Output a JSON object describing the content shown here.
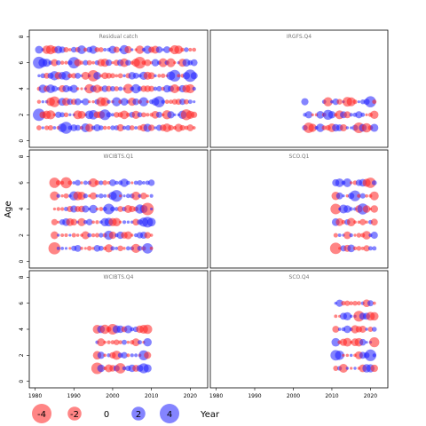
{
  "chart_data": {
    "type": "scatter",
    "ylabel": "Age",
    "xlabel": "Year",
    "xlim": [
      1978.5,
      2024.5
    ],
    "ylim": [
      -0.5,
      8.5
    ],
    "xticks": [
      1980,
      1990,
      2000,
      2010,
      2020
    ],
    "yticks": [
      0,
      2,
      4,
      6,
      8
    ],
    "positive_color": "#1f1fff",
    "negative_color": "#ff2020",
    "legend": {
      "values": [
        -4,
        -2,
        0,
        2,
        4
      ],
      "labels": [
        "-4",
        "-2",
        "0",
        "2",
        "4"
      ],
      "title": "Year"
    },
    "panels": [
      {
        "title": "Residual catch",
        "years": [
          1981,
          2021
        ],
        "ages": [
          1,
          7
        ],
        "anchors": [
          {
            "year": 1981,
            "age": 6,
            "value": 3.8
          },
          {
            "year": 1981,
            "age": 2,
            "value": 3.9
          },
          {
            "year": 1982,
            "age": 4,
            "value": 1.8
          },
          {
            "year": 1984,
            "age": 7,
            "value": -2.2
          },
          {
            "year": 1985,
            "age": 3,
            "value": -3.0
          },
          {
            "year": 1988,
            "age": 1,
            "value": 3.7
          },
          {
            "year": 1990,
            "age": 6,
            "value": 3.4
          },
          {
            "year": 1995,
            "age": 5,
            "value": -3.3
          },
          {
            "year": 1998,
            "age": 2,
            "value": 3.0
          },
          {
            "year": 2004,
            "age": 4,
            "value": -2.5
          },
          {
            "year": 2007,
            "age": 6,
            "value": -3.6
          },
          {
            "year": 2012,
            "age": 3,
            "value": 3.2
          },
          {
            "year": 2016,
            "age": 5,
            "value": 3.5
          },
          {
            "year": 2019,
            "age": 2,
            "value": -3.1
          },
          {
            "year": 2020,
            "age": 5,
            "value": 3.9
          }
        ]
      },
      {
        "title": "IRGFS.Q4",
        "years": [
          2003,
          2021
        ],
        "ages": [
          1,
          3
        ],
        "skip": [
          {
            "from": 2004,
            "to": 2007,
            "age": 3
          }
        ],
        "anchors": [
          {
            "year": 2004,
            "age": 3,
            "value": -2.6
          },
          {
            "year": 2004,
            "age": 1,
            "value": -2.8
          },
          {
            "year": 2009,
            "age": 2,
            "value": 2.6
          },
          {
            "year": 2014,
            "age": 3,
            "value": -2.4
          },
          {
            "year": 2017,
            "age": 1,
            "value": -3.0
          },
          {
            "year": 2020,
            "age": 3,
            "value": 3.2
          }
        ]
      },
      {
        "title": "WCIBTS.Q1",
        "years": [
          1985,
          2010
        ],
        "ages": [
          1,
          6
        ],
        "anchors": [
          {
            "year": 1985,
            "age": 1,
            "value": -3.8
          },
          {
            "year": 1985,
            "age": 6,
            "value": -2.8
          },
          {
            "year": 1988,
            "age": 6,
            "value": -3.2
          },
          {
            "year": 1999,
            "age": 4,
            "value": 3.0
          },
          {
            "year": 2001,
            "age": 5,
            "value": 3.6
          },
          {
            "year": 2009,
            "age": 4,
            "value": -4.0
          },
          {
            "year": 2009,
            "age": 1,
            "value": 2.8
          },
          {
            "year": 2009,
            "age": 3,
            "value": 3.0
          }
        ]
      },
      {
        "title": "SCO.Q1",
        "years": [
          2011,
          2021
        ],
        "ages": [
          1,
          6
        ],
        "anchors": [
          {
            "year": 2011,
            "age": 1,
            "value": -3.4
          },
          {
            "year": 2011,
            "age": 4,
            "value": -2.9
          },
          {
            "year": 2016,
            "age": 5,
            "value": 3.0
          },
          {
            "year": 2018,
            "age": 4,
            "value": 3.2
          },
          {
            "year": 2020,
            "age": 6,
            "value": -2.8
          }
        ]
      },
      {
        "title": "WCIBTS.Q4",
        "years": [
          1996,
          2009
        ],
        "ages": [
          1,
          4
        ],
        "anchors": [
          {
            "year": 1996,
            "age": 1,
            "value": -3.5
          },
          {
            "year": 2000,
            "age": 4,
            "value": -2.9
          },
          {
            "year": 2002,
            "age": 1,
            "value": -2.8
          },
          {
            "year": 2008,
            "age": 1,
            "value": 2.6
          },
          {
            "year": 2008,
            "age": 2,
            "value": 2.6
          }
        ]
      },
      {
        "title": "SCO.Q4",
        "years": [
          2011,
          2021
        ],
        "ages": [
          1,
          6
        ],
        "anchors": [
          {
            "year": 2011,
            "age": 2,
            "value": 2.9
          },
          {
            "year": 2017,
            "age": 5,
            "value": -3.0
          },
          {
            "year": 2020,
            "age": 2,
            "value": 3.5
          },
          {
            "year": 2021,
            "age": 3,
            "value": -2.6
          }
        ]
      }
    ]
  }
}
